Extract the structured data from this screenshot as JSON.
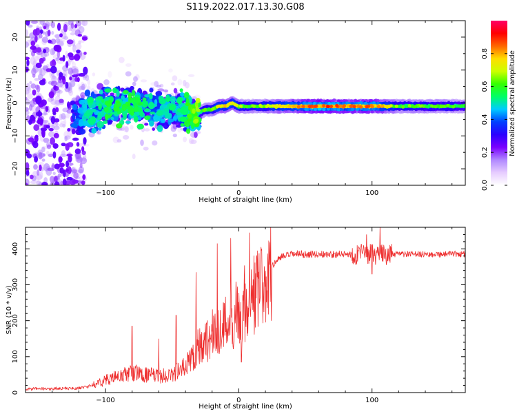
{
  "page_title": "S119.2022.017.13.30.G08",
  "chart_data": [
    {
      "type": "heatmap",
      "xlabel": "Height of straight line (km)",
      "ylabel": "Frequency (Hz)",
      "xlim": [
        -160,
        170
      ],
      "ylim": [
        -25,
        25
      ],
      "xticks": [
        -100,
        0,
        100
      ],
      "yticks": [
        -20,
        -10,
        0,
        10,
        20
      ],
      "colorbar": {
        "label": "Normalized spectral amplitude",
        "range": [
          0,
          1
        ],
        "ticks": [
          0.0,
          0.2,
          0.4,
          0.6,
          0.8
        ],
        "colormap": [
          "#ffffff",
          "#e6ccff",
          "#b088ff",
          "#7a00ff",
          "#2a00ff",
          "#0040ff",
          "#00ccff",
          "#00ff66",
          "#33ff00",
          "#ccff00",
          "#ffdd00",
          "#ff6600",
          "#ff0000",
          "#ff0066"
        ]
      },
      "ridge": {
        "x": [
          -125,
          -115,
          -105,
          -95,
          -85,
          -75,
          -65,
          -55,
          -45,
          -35,
          -30,
          -25,
          -20,
          -15,
          -10,
          -5,
          0,
          5,
          10,
          20,
          40,
          60,
          80,
          100,
          120,
          140,
          160,
          170
        ],
        "y": [
          -6,
          -3,
          -2,
          -1,
          0,
          -1,
          -2,
          -2,
          -2,
          -4,
          -3,
          -2,
          -2,
          -1,
          -1,
          0,
          -1,
          -1,
          -1,
          -1,
          -1,
          -1,
          -1,
          -1,
          -1,
          -1,
          -1,
          -1
        ],
        "amplitude": [
          0.35,
          0.45,
          0.45,
          0.5,
          0.5,
          0.5,
          0.45,
          0.45,
          0.45,
          0.55,
          0.6,
          0.6,
          0.62,
          0.7,
          0.75,
          0.72,
          0.65,
          0.6,
          0.6,
          0.65,
          0.75,
          0.85,
          0.8,
          0.82,
          0.62,
          0.6,
          0.58,
          0.55
        ]
      }
    },
    {
      "type": "line",
      "xlabel": "Height of straight line (km)",
      "ylabel": "SNR (10 * v/v)",
      "xlim": [
        -160,
        170
      ],
      "ylim": [
        0,
        460
      ],
      "xticks": [
        -100,
        0,
        100
      ],
      "yticks": [
        0,
        100,
        200,
        300,
        400
      ],
      "color": "#ee3030",
      "envelope": {
        "x": [
          -160,
          -120,
          -110,
          -100,
          -90,
          -80,
          -70,
          -60,
          -50,
          -40,
          -30,
          -20,
          -10,
          0,
          10,
          20,
          25,
          30,
          40,
          60,
          80,
          100,
          110,
          120,
          140,
          170
        ],
        "y": [
          10,
          12,
          20,
          35,
          45,
          55,
          50,
          45,
          50,
          70,
          130,
          160,
          190,
          230,
          270,
          300,
          350,
          375,
          385,
          385,
          385,
          385,
          385,
          385,
          385,
          385
        ]
      },
      "spikes": [
        {
          "x": -80,
          "y": 185
        },
        {
          "x": -60,
          "y": 150
        },
        {
          "x": -47,
          "y": 215
        },
        {
          "x": -32,
          "y": 335
        },
        {
          "x": -16,
          "y": 415
        },
        {
          "x": -6,
          "y": 430
        },
        {
          "x": 8,
          "y": 445
        },
        {
          "x": 2,
          "y": 85
        },
        {
          "x": 96,
          "y": 440
        },
        {
          "x": 106,
          "y": 460
        },
        {
          "x": 100,
          "y": 330
        }
      ]
    }
  ]
}
